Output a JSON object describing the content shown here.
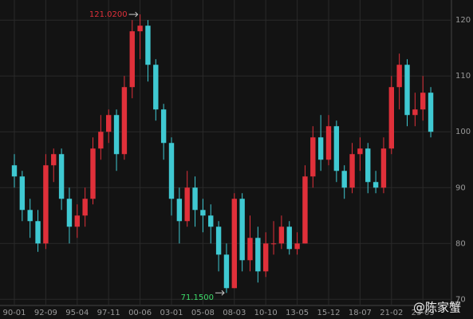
{
  "chart_data": {
    "type": "candlestick",
    "categories": [
      "90-01",
      null,
      null,
      null,
      "92-09",
      null,
      null,
      null,
      "95-04",
      null,
      null,
      null,
      "97-11",
      null,
      null,
      null,
      "00-06",
      null,
      null,
      null,
      "03-01",
      null,
      null,
      null,
      "05-08",
      null,
      null,
      null,
      "08-03",
      null,
      null,
      null,
      "10-10",
      null,
      null,
      null,
      "13-05",
      null,
      null,
      null,
      "15-12",
      null,
      null,
      null,
      "18-07",
      null,
      null,
      null,
      "21-02",
      null,
      null,
      null,
      "23-09",
      null
    ],
    "open": [
      94,
      92,
      86,
      84,
      80,
      94,
      96,
      88,
      83,
      85,
      88,
      97,
      100,
      103,
      96,
      108,
      118,
      119,
      112,
      104,
      98,
      88,
      84,
      90,
      86,
      85,
      83,
      78,
      72,
      88,
      77,
      81,
      75,
      80,
      80,
      83,
      79,
      80,
      92,
      99,
      95,
      101,
      93,
      90,
      96,
      97,
      91,
      90,
      97,
      108,
      112,
      103,
      104,
      107
    ],
    "high": [
      96,
      93,
      88,
      86,
      96,
      97,
      97,
      90,
      87,
      90,
      99,
      103,
      104,
      104,
      110,
      120,
      121.02,
      120,
      113,
      105,
      99,
      90,
      93,
      92,
      88,
      87,
      84,
      80,
      89,
      89,
      85,
      83,
      82,
      84,
      85,
      84,
      82,
      94,
      101,
      103,
      103,
      102,
      94,
      98,
      99,
      98,
      93,
      99,
      110,
      114,
      113,
      107,
      110,
      108
    ],
    "low": [
      90,
      84,
      81,
      78.5,
      79,
      91,
      86,
      80,
      81,
      83,
      87,
      95,
      98,
      93,
      95,
      106,
      113,
      109,
      102,
      95,
      85,
      80,
      83,
      83,
      82,
      80,
      75,
      71.15,
      72,
      75,
      75,
      73,
      74,
      78,
      79,
      78,
      78,
      80,
      90,
      93,
      94,
      91,
      88,
      89,
      93,
      89,
      89,
      89,
      96,
      104,
      101,
      101,
      102,
      99
    ],
    "close": [
      92,
      86,
      84,
      80,
      94,
      96,
      88,
      83,
      85,
      88,
      97,
      100,
      103,
      96,
      108,
      118,
      119,
      112,
      104,
      98,
      88,
      84,
      90,
      86,
      85,
      83,
      78,
      72,
      88,
      77,
      81,
      75,
      80,
      80,
      83,
      79,
      80,
      92,
      99,
      95,
      101,
      93,
      90,
      96,
      97,
      91,
      90,
      97,
      108,
      112,
      103,
      104,
      107,
      100
    ],
    "up_color": "#e0303a",
    "down_color": "#3fc9d2",
    "ylim": [
      68.9,
      123.6
    ],
    "yticks": [
      70,
      80,
      90,
      100,
      110,
      120
    ],
    "grid": true,
    "max_label": {
      "value": 121.02,
      "label": "121.0200"
    },
    "min_label": {
      "value": 71.15,
      "label": "71.1500"
    },
    "watermark": "@陈家蟹"
  }
}
